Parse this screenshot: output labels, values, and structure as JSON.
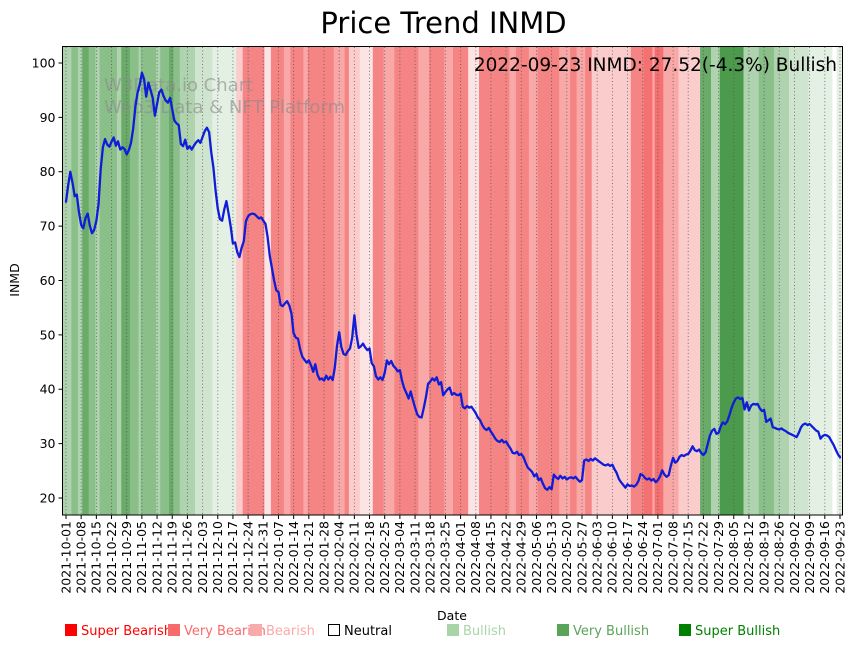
{
  "page": {
    "background": "#ffffff"
  },
  "watermark": {
    "line1": "W3Data.io Chart",
    "line2": "Web3 Data & NFT Platform",
    "color": "#8c8c8c"
  },
  "annotation": {
    "text": "2022-09-23 INMD: 27.52(-4.3%) Bullish"
  },
  "chart_data": {
    "type": "line",
    "title": "Price Trend INMD",
    "xlabel": "Date",
    "ylabel": "INMD",
    "ylim": [
      16.9,
      103.1
    ],
    "y_ticks": [
      20,
      30,
      40,
      50,
      60,
      70,
      80,
      90,
      100
    ],
    "grid": "weekly vertical dotted gray lines",
    "x_tick_labels": [
      "2021-10-01",
      "2021-10-08",
      "2021-10-15",
      "2021-10-22",
      "2021-10-29",
      "2021-11-05",
      "2021-11-12",
      "2021-11-19",
      "2021-11-26",
      "2021-12-03",
      "2021-12-10",
      "2021-12-17",
      "2021-12-24",
      "2021-12-31",
      "2022-01-07",
      "2022-01-14",
      "2022-01-21",
      "2022-01-28",
      "2022-02-04",
      "2022-02-11",
      "2022-02-18",
      "2022-02-25",
      "2022-03-04",
      "2022-03-11",
      "2022-03-18",
      "2022-03-25",
      "2022-04-01",
      "2022-04-08",
      "2022-04-15",
      "2022-04-22",
      "2022-04-29",
      "2022-05-06",
      "2022-05-13",
      "2022-05-20",
      "2022-05-27",
      "2022-06-03",
      "2022-06-10",
      "2022-06-17",
      "2022-06-24",
      "2022-07-01",
      "2022-07-08",
      "2022-07-15",
      "2022-07-22",
      "2022-07-29",
      "2022-08-05",
      "2022-08-12",
      "2022-08-19",
      "2022-08-26",
      "2022-09-02",
      "2022-09-09",
      "2022-09-16",
      "2022-09-23"
    ],
    "series": [
      {
        "name": "INMD daily price",
        "color": "#0f1dd8",
        "start_date": "2021-10-01",
        "end_date": "2022-09-23",
        "frequency": "daily",
        "values": [
          74.5,
          77.5,
          80.0,
          78.0,
          75.5,
          75.8,
          72.5,
          70.2,
          69.6,
          71.5,
          72.3,
          70.1,
          68.7,
          69.3,
          71.0,
          74.0,
          80.5,
          84.5,
          86.0,
          85.0,
          84.6,
          85.5,
          86.3,
          84.8,
          85.6,
          84.1,
          84.5,
          84.2,
          83.2,
          84.0,
          85.3,
          88.0,
          92.0,
          94.5,
          96.0,
          98.2,
          97.0,
          93.8,
          96.4,
          95.0,
          93.6,
          90.3,
          92.5,
          94.6,
          95.1,
          93.9,
          93.1,
          92.7,
          93.6,
          91.5,
          89.4,
          88.9,
          88.6,
          85.1,
          84.7,
          85.9,
          84.2,
          84.7,
          84.1,
          84.8,
          85.4,
          85.8,
          85.3,
          86.4,
          87.5,
          88.1,
          87.3,
          83.5,
          80.8,
          76.5,
          73.2,
          71.3,
          71.0,
          73.1,
          74.6,
          72.3,
          69.8,
          66.8,
          67.0,
          65.2,
          64.3,
          66.0,
          67.2,
          70.9,
          71.8,
          72.2,
          72.3,
          72.2,
          71.8,
          71.4,
          71.6,
          71.0,
          70.4,
          68.0,
          64.5,
          62.2,
          60.0,
          58.2,
          57.9,
          55.5,
          55.3,
          55.8,
          56.2,
          55.4,
          53.9,
          50.3,
          49.5,
          49.3,
          47.3,
          46.0,
          45.4,
          44.9,
          45.3,
          44.4,
          43.2,
          44.6,
          42.7,
          41.8,
          42.0,
          41.6,
          42.5,
          41.8,
          42.3,
          41.7,
          44.0,
          48.0,
          50.5,
          47.8,
          46.5,
          46.3,
          47.0,
          47.5,
          49.5,
          53.6,
          50.0,
          47.6,
          47.9,
          48.4,
          47.7,
          47.2,
          47.5,
          44.8,
          44.2,
          42.4,
          41.8,
          42.2,
          41.7,
          43.0,
          45.3,
          44.6,
          45.2,
          44.3,
          43.9,
          43.3,
          43.5,
          41.5,
          40.2,
          39.3,
          38.3,
          39.6,
          38.0,
          36.6,
          35.4,
          34.9,
          34.8,
          36.5,
          38.5,
          41.0,
          41.4,
          42.0,
          41.6,
          42.2,
          40.9,
          41.3,
          38.9,
          39.5,
          40.0,
          40.3,
          39.0,
          39.3,
          39.0,
          38.9,
          39.2,
          36.8,
          36.5,
          36.9,
          36.6,
          36.8,
          36.2,
          35.6,
          34.8,
          34.3,
          33.4,
          32.8,
          32.5,
          32.9,
          32.2,
          31.6,
          30.9,
          30.5,
          30.3,
          30.7,
          30.2,
          30.4,
          29.7,
          29.1,
          28.3,
          28.2,
          28.5,
          27.9,
          28.1,
          27.5,
          26.5,
          25.6,
          25.2,
          24.8,
          24.0,
          24.4,
          23.3,
          23.6,
          22.6,
          21.8,
          21.5,
          22.0,
          21.6,
          24.3,
          23.8,
          23.5,
          24.1,
          23.6,
          23.9,
          23.4,
          23.7,
          23.8,
          23.6,
          23.9,
          23.4,
          23.0,
          23.3,
          26.9,
          27.1,
          26.8,
          27.2,
          26.9,
          27.3,
          27.0,
          26.7,
          26.4,
          26.1,
          26.0,
          26.2,
          25.9,
          26.1,
          25.3,
          24.6,
          23.5,
          22.9,
          22.4,
          21.9,
          22.5,
          22.2,
          22.3,
          22.1,
          22.4,
          23.1,
          24.4,
          24.2,
          23.7,
          23.4,
          23.6,
          23.2,
          23.5,
          22.9,
          23.3,
          24.0,
          25.1,
          24.3,
          23.9,
          24.2,
          26.0,
          27.4,
          26.5,
          26.8,
          27.6,
          27.9,
          27.7,
          28.0,
          28.1,
          28.7,
          29.5,
          28.8,
          28.6,
          28.9,
          28.3,
          27.9,
          28.4,
          29.9,
          31.5,
          32.4,
          32.7,
          31.8,
          32.0,
          33.2,
          33.9,
          33.6,
          34.1,
          35.2,
          36.6,
          37.6,
          38.3,
          38.5,
          38.2,
          38.4,
          36.3,
          37.6,
          36.1,
          37.0,
          37.3,
          37.2,
          37.3,
          36.5,
          36.0,
          36.2,
          34.0,
          34.3,
          34.6,
          33.0,
          32.9,
          32.7,
          32.6,
          32.8,
          32.5,
          32.3,
          32.0,
          31.8,
          31.6,
          31.4,
          31.2,
          32.0,
          33.0,
          33.5,
          33.7,
          33.4,
          33.6,
          33.2,
          32.8,
          32.4,
          32.2,
          30.9,
          31.4,
          31.6,
          31.5,
          31.2,
          30.5,
          29.8,
          28.9,
          28.1,
          27.5
        ]
      }
    ],
    "band_colors": {
      "red2": "#f57070",
      "salmon": "#f58484",
      "pink": "#f9a8a8",
      "palepink": "#fbcccc",
      "vpalepink": "#fde4e4",
      "white": "#ffffff",
      "vpalegreen": "#e4f0e4",
      "palegreen": "#cfe5cf",
      "lightgreen": "#aed3ae",
      "green": "#8abf8a",
      "dgreen": "#6aab6a",
      "ddgreen": "#4c9a4c"
    },
    "background_bands": [
      {
        "s": 0,
        "e": 3,
        "c": "lightgreen"
      },
      {
        "s": 3,
        "e": 6,
        "c": "green"
      },
      {
        "s": 6,
        "e": 8,
        "c": "lightgreen"
      },
      {
        "s": 8,
        "e": 11,
        "c": "dgreen"
      },
      {
        "s": 11,
        "e": 14,
        "c": "green"
      },
      {
        "s": 14,
        "e": 16,
        "c": "lightgreen"
      },
      {
        "s": 16,
        "e": 24,
        "c": "green"
      },
      {
        "s": 24,
        "e": 26,
        "c": "lightgreen"
      },
      {
        "s": 26,
        "e": 30,
        "c": "dgreen"
      },
      {
        "s": 30,
        "e": 34,
        "c": "green"
      },
      {
        "s": 34,
        "e": 35,
        "c": "lightgreen"
      },
      {
        "s": 35,
        "e": 42,
        "c": "green"
      },
      {
        "s": 42,
        "e": 44,
        "c": "lightgreen"
      },
      {
        "s": 44,
        "e": 48,
        "c": "green"
      },
      {
        "s": 48,
        "e": 50,
        "c": "dgreen"
      },
      {
        "s": 50,
        "e": 53,
        "c": "green"
      },
      {
        "s": 53,
        "e": 60,
        "c": "lightgreen"
      },
      {
        "s": 60,
        "e": 68,
        "c": "palegreen"
      },
      {
        "s": 68,
        "e": 79,
        "c": "vpalegreen"
      },
      {
        "s": 79,
        "e": 82,
        "c": "palepink"
      },
      {
        "s": 82,
        "e": 92,
        "c": "salmon"
      },
      {
        "s": 92,
        "e": 95,
        "c": "vpalepink"
      },
      {
        "s": 95,
        "e": 101,
        "c": "salmon"
      },
      {
        "s": 101,
        "e": 104,
        "c": "pink"
      },
      {
        "s": 104,
        "e": 110,
        "c": "salmon"
      },
      {
        "s": 110,
        "e": 112,
        "c": "pink"
      },
      {
        "s": 112,
        "e": 124,
        "c": "salmon"
      },
      {
        "s": 124,
        "e": 129,
        "c": "pink"
      },
      {
        "s": 129,
        "e": 131,
        "c": "salmon"
      },
      {
        "s": 131,
        "e": 136,
        "c": "palepink"
      },
      {
        "s": 136,
        "e": 142,
        "c": "vpalepink"
      },
      {
        "s": 142,
        "e": 147,
        "c": "salmon"
      },
      {
        "s": 147,
        "e": 152,
        "c": "pink"
      },
      {
        "s": 152,
        "e": 163,
        "c": "salmon"
      },
      {
        "s": 163,
        "e": 168,
        "c": "pink"
      },
      {
        "s": 168,
        "e": 175,
        "c": "salmon"
      },
      {
        "s": 175,
        "e": 179,
        "c": "pink"
      },
      {
        "s": 179,
        "e": 186,
        "c": "salmon"
      },
      {
        "s": 186,
        "e": 191,
        "c": "vpalepink"
      },
      {
        "s": 191,
        "e": 205,
        "c": "salmon"
      },
      {
        "s": 205,
        "e": 208,
        "c": "pink"
      },
      {
        "s": 208,
        "e": 214,
        "c": "salmon"
      },
      {
        "s": 214,
        "e": 218,
        "c": "pink"
      },
      {
        "s": 218,
        "e": 228,
        "c": "salmon"
      },
      {
        "s": 228,
        "e": 233,
        "c": "pink"
      },
      {
        "s": 233,
        "e": 236,
        "c": "salmon"
      },
      {
        "s": 236,
        "e": 240,
        "c": "pink"
      },
      {
        "s": 240,
        "e": 243,
        "c": "salmon"
      },
      {
        "s": 243,
        "e": 261,
        "c": "palepink"
      },
      {
        "s": 261,
        "e": 267,
        "c": "salmon"
      },
      {
        "s": 267,
        "e": 271,
        "c": "red2"
      },
      {
        "s": 271,
        "e": 272,
        "c": "pink"
      },
      {
        "s": 272,
        "e": 276,
        "c": "red2"
      },
      {
        "s": 276,
        "e": 283,
        "c": "pink"
      },
      {
        "s": 283,
        "e": 293,
        "c": "palepink"
      },
      {
        "s": 293,
        "e": 298,
        "c": "dgreen"
      },
      {
        "s": 298,
        "e": 302,
        "c": "lightgreen"
      },
      {
        "s": 302,
        "e": 313,
        "c": "ddgreen"
      },
      {
        "s": 313,
        "e": 320,
        "c": "lightgreen"
      },
      {
        "s": 320,
        "e": 327,
        "c": "green"
      },
      {
        "s": 327,
        "e": 334,
        "c": "lightgreen"
      },
      {
        "s": 334,
        "e": 343,
        "c": "palegreen"
      },
      {
        "s": 343,
        "e": 354,
        "c": "vpalegreen"
      },
      {
        "s": 354,
        "e": 356,
        "c": "white"
      },
      {
        "s": 356,
        "e": 358,
        "c": "vpalegreen"
      }
    ],
    "legend": {
      "position": "bottom",
      "entries": [
        {
          "label": "Super Bearish",
          "swatch": "#ff0000",
          "text_color": "#ff0000"
        },
        {
          "label": "Very Bearish",
          "swatch": "#f96b6b",
          "text_color": "#f96b6b"
        },
        {
          "label": "Bearish",
          "swatch": "#f9aaaa",
          "text_color": "#f9aaaa"
        },
        {
          "label": "Neutral",
          "swatch": "#ffffff",
          "text_color": "#000000",
          "border": "#000000"
        },
        {
          "label": "Bullish",
          "swatch": "#a8d5a8",
          "text_color": "#a8d5a8"
        },
        {
          "label": "Very Bullish",
          "swatch": "#5aa45a",
          "text_color": "#5aa45a"
        },
        {
          "label": "Super Bullish",
          "swatch": "#008000",
          "text_color": "#008000"
        }
      ]
    }
  }
}
